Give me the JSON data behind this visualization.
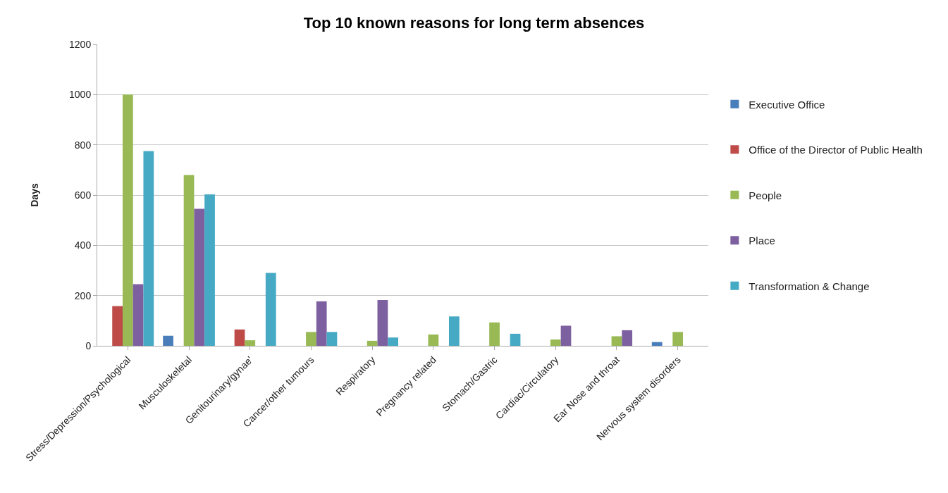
{
  "chart_data": {
    "type": "bar",
    "title": "Top 10 known reasons for long term absences",
    "ylabel": "Days",
    "categories": [
      "Stress/Depression/Psychological",
      "Musculoskeletal",
      "Genitourinary/gynae'",
      "Cancer/other tumours",
      "Respiratory",
      "Pregnancy related",
      "Stomach/Gastric",
      "Cardiac/Circulatory",
      "Ear Nose and throat",
      "Nervous system disorders"
    ],
    "series": [
      {
        "name": "Executive Office",
        "color": "#4a7ebb",
        "values": [
          0,
          40,
          0,
          0,
          0,
          0,
          0,
          0,
          0,
          15
        ]
      },
      {
        "name": "Office of the Director of Public Health",
        "color": "#be4b48",
        "values": [
          158,
          0,
          65,
          0,
          0,
          0,
          0,
          0,
          0,
          0
        ]
      },
      {
        "name": "People",
        "color": "#98b954",
        "values": [
          1000,
          680,
          22,
          55,
          20,
          45,
          93,
          25,
          38,
          55
        ]
      },
      {
        "name": "Place",
        "color": "#7d60a0",
        "values": [
          245,
          545,
          0,
          177,
          182,
          0,
          0,
          80,
          62,
          0
        ]
      },
      {
        "name": "Transformation & Change",
        "color": "#46aac5",
        "values": [
          775,
          603,
          290,
          55,
          33,
          117,
          48,
          0,
          0,
          0
        ]
      }
    ],
    "ylim": [
      0,
      1200
    ],
    "yticks": [
      0,
      200,
      400,
      600,
      800,
      1000,
      1200
    ],
    "grid": "y",
    "legend": "right"
  }
}
